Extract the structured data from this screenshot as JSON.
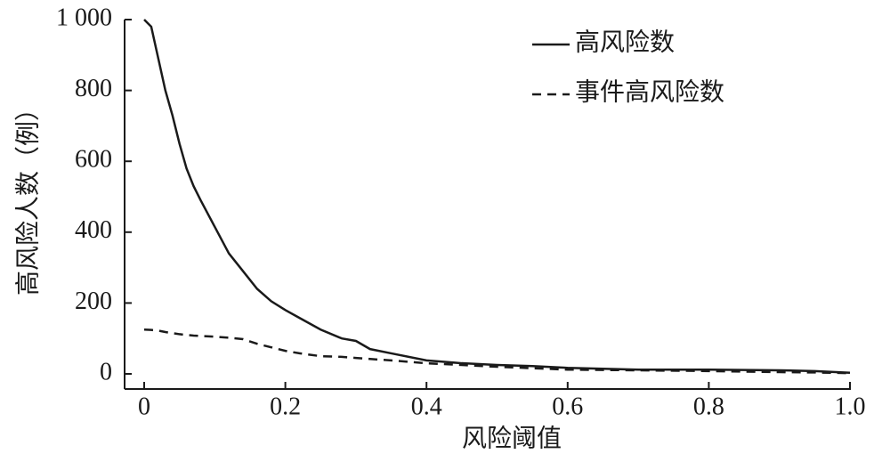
{
  "chart_data": {
    "type": "line",
    "x_label": "风险阈值",
    "y_label": "高风险人数（例）",
    "x": [
      0,
      0.01,
      0.02,
      0.03,
      0.04,
      0.05,
      0.06,
      0.07,
      0.08,
      0.1,
      0.12,
      0.14,
      0.16,
      0.18,
      0.2,
      0.22,
      0.25,
      0.28,
      0.3,
      0.32,
      0.35,
      0.4,
      0.45,
      0.5,
      0.55,
      0.6,
      0.7,
      0.8,
      0.9,
      0.95,
      1.0
    ],
    "series": [
      {
        "name": "高风险数",
        "color": "#1a1a1a",
        "style": "solid",
        "values": [
          1000,
          980,
          890,
          800,
          730,
          650,
          580,
          530,
          490,
          415,
          340,
          290,
          240,
          205,
          180,
          158,
          125,
          100,
          93,
          70,
          58,
          38,
          30,
          25,
          22,
          17,
          12,
          12,
          10,
          8,
          3
        ]
      },
      {
        "name": "事件高风险数",
        "color": "#1a1a1a",
        "style": "dashed",
        "values": [
          125,
          124,
          122,
          118,
          115,
          112,
          110,
          108,
          107,
          105,
          102,
          98,
          85,
          75,
          65,
          58,
          50,
          48,
          45,
          42,
          38,
          30,
          25,
          20,
          16,
          12,
          10,
          8,
          5,
          4,
          2
        ]
      }
    ],
    "xlim": [
      0,
      1
    ],
    "xticks": [
      0,
      0.2,
      0.4,
      0.6,
      0.8,
      {
        "value": 1,
        "label": "1.0"
      }
    ],
    "ylim": [
      0,
      1000
    ],
    "yticks": [
      0,
      200,
      400,
      600,
      800,
      {
        "value": 1000,
        "label": "1 000"
      }
    ],
    "grid": false,
    "legend": "upper right"
  }
}
